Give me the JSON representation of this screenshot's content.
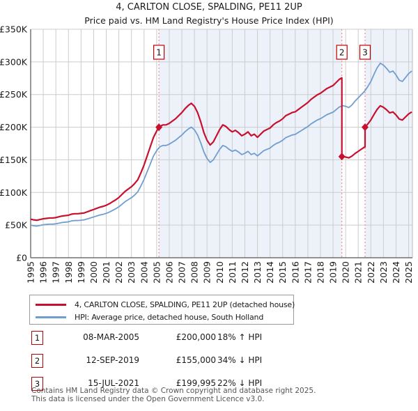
{
  "title": "4, CARLTON CLOSE, SPALDING, PE11 2UP",
  "subtitle": "Price paid vs. HM Land Registry's House Price Index (HPI)",
  "legend": {
    "items": [
      {
        "label": "4, CARLTON CLOSE, SPALDING, PE11 2UP (detached house)",
        "color": "#c8102e"
      },
      {
        "label": "HPI: Average price, detached house, South Holland",
        "color": "#6f9ecf"
      }
    ]
  },
  "transactions": [
    {
      "n": "1",
      "date": "08-MAR-2005",
      "price": "£200,000",
      "vs_hpi": "18% ↑ HPI"
    },
    {
      "n": "2",
      "date": "12-SEP-2019",
      "price": "£155,000",
      "vs_hpi": "34% ↓ HPI"
    },
    {
      "n": "3",
      "date": "15-JUL-2021",
      "price": "£199,995",
      "vs_hpi": "22% ↓ HPI"
    }
  ],
  "footer": {
    "line1": "Contains HM Land Registry data © Crown copyright and database right 2025.",
    "line2": "This data is licensed under the Open Government Licence v3.0."
  },
  "chart_data": {
    "type": "line",
    "title": "4, CARLTON CLOSE, SPALDING, PE11 2UP",
    "xlabel": "",
    "ylabel": "",
    "x_start": 1995,
    "x_step": 0.25,
    "xlim": [
      1995,
      2025.3
    ],
    "ylim_thousands": [
      0,
      350
    ],
    "grid": true,
    "legend_position": "below",
    "y_ticks": [
      {
        "v": 350,
        "label": "£350K"
      },
      {
        "v": 300,
        "label": "£300K"
      },
      {
        "v": 250,
        "label": "£250K"
      },
      {
        "v": 200,
        "label": "£200K"
      },
      {
        "v": 150,
        "label": "£150K"
      },
      {
        "v": 100,
        "label": "£100K"
      },
      {
        "v": 50,
        "label": "£50K"
      },
      {
        "v": 0,
        "label": "£0"
      }
    ],
    "x_tick_years": [
      1995,
      1996,
      1997,
      1998,
      1999,
      2000,
      2001,
      2002,
      2003,
      2004,
      2005,
      2006,
      2007,
      2008,
      2009,
      2010,
      2011,
      2012,
      2013,
      2014,
      2015,
      2016,
      2017,
      2018,
      2019,
      2020,
      2021,
      2022,
      2023,
      2024,
      2025
    ],
    "series": [
      {
        "name": "4, CARLTON CLOSE, SPALDING, PE11 2UP (detached house)",
        "color": "#c8102e",
        "width": 2.2,
        "values_thousands": [
          59.2,
          58.0,
          57.4,
          58.6,
          59.7,
          60.3,
          60.9,
          60.9,
          61.5,
          62.7,
          63.9,
          64.5,
          65.1,
          66.8,
          67.4,
          67.4,
          68.0,
          68.6,
          70.4,
          72.2,
          73.9,
          75.7,
          77.5,
          78.7,
          80.4,
          82.8,
          85.8,
          88.7,
          92.3,
          97.0,
          101.7,
          105.3,
          108.8,
          113.6,
          119.5,
          130.1,
          142.0,
          156.2,
          170.4,
          184.5,
          194.0,
          201.1,
          203.5,
          203.5,
          205.8,
          209.4,
          212.9,
          217.7,
          222.4,
          228.3,
          233.1,
          236.6,
          231.9,
          222.4,
          208.2,
          191.6,
          179.8,
          172.7,
          177.5,
          186.9,
          196.4,
          203.5,
          201.1,
          196.4,
          192.8,
          195.2,
          191.6,
          186.9,
          189.3,
          192.8,
          186.9,
          189.3,
          184.5,
          189.3,
          194.0,
          196.4,
          198.7,
          203.5,
          207.0,
          209.4,
          212.9,
          217.7,
          220.0,
          222.4,
          223.6,
          227.1,
          230.7,
          234.2,
          237.8,
          242.5,
          246.1,
          249.6,
          252.0,
          255.5,
          259.1,
          261.4,
          263.8,
          268.5,
          273.3,
          155.0,
          154.3,
          153.0,
          155.7,
          159.7,
          163.0,
          166.3,
          169.6,
          204.7,
          211.0,
          219.5,
          227.3,
          232.8,
          230.5,
          226.6,
          221.9,
          223.4,
          218.7,
          212.5,
          210.9,
          215.7,
          220.3,
          223.4
        ]
      },
      {
        "name": "HPI: Average price, detached house, South Holland",
        "color": "#6f9ecf",
        "width": 1.8,
        "values_thousands": [
          50,
          49,
          48.5,
          49.5,
          50.5,
          51,
          51.5,
          51.5,
          52,
          53,
          54,
          54.5,
          55,
          56.5,
          57,
          57,
          57.5,
          58,
          59.5,
          61,
          62.5,
          64,
          65.5,
          66.5,
          68,
          70,
          72.5,
          75,
          78,
          82,
          86,
          89,
          92,
          96,
          101,
          110,
          120,
          132,
          144,
          156,
          164,
          170,
          172,
          172,
          174,
          177,
          180,
          184,
          188,
          193,
          197,
          200,
          196,
          188,
          176,
          162,
          152,
          146,
          150,
          158,
          166,
          172,
          170,
          166,
          163,
          165,
          162,
          158,
          160,
          163,
          158,
          160,
          156,
          160,
          164,
          166,
          168,
          172,
          175,
          177,
          180,
          184,
          186,
          188,
          189,
          192,
          195,
          198,
          201,
          205,
          208,
          211,
          213,
          216,
          219,
          221,
          223,
          227,
          231,
          233,
          232,
          230,
          234,
          240,
          245,
          250,
          255,
          262,
          270,
          281,
          291,
          298,
          295,
          290,
          284,
          286,
          280,
          272,
          270,
          276,
          282,
          286
        ]
      }
    ],
    "sales": [
      {
        "n": "1",
        "x": 2005.18,
        "price_thousands": 200.0
      },
      {
        "n": "2",
        "x": 2019.7,
        "price_thousands": 155.0,
        "pre_jump_thousands": 275.6
      },
      {
        "n": "3",
        "x": 2021.54,
        "price_thousands": 200.0,
        "pre_jump_thousands": 169.8
      }
    ],
    "shaded_ranges": [
      [
        2005.18,
        2019.7
      ],
      [
        2021.54,
        2025.3
      ]
    ],
    "colors": {
      "shade": "#ecf1fa",
      "grid": "#cccccc",
      "axis": "#555555",
      "edge": "#bbbbbb",
      "dashed_marker": "#f28b8b",
      "marker_box_border": "#c00000",
      "tick_text": "#1a1a1a"
    }
  }
}
